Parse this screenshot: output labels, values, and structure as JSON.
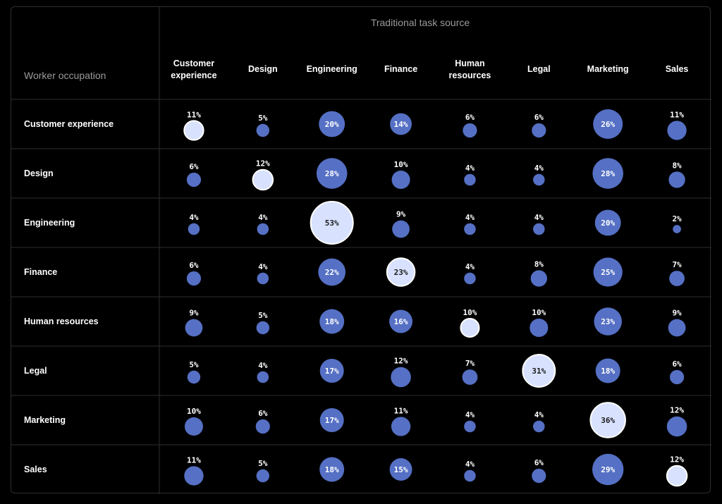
{
  "chart_data": {
    "type": "heatmap",
    "title": "",
    "column_group_label": "Traditional task source",
    "row_group_label": "Worker occupation",
    "columns": [
      "Customer experience",
      "Design",
      "Engineering",
      "Finance",
      "Human resources",
      "Legal",
      "Marketing",
      "Sales"
    ],
    "rows": [
      "Customer experience",
      "Design",
      "Engineering",
      "Finance",
      "Human resources",
      "Legal",
      "Marketing",
      "Sales"
    ],
    "values": [
      [
        11,
        5,
        20,
        14,
        6,
        6,
        26,
        11
      ],
      [
        6,
        12,
        28,
        10,
        4,
        4,
        28,
        8
      ],
      [
        4,
        4,
        53,
        9,
        4,
        4,
        20,
        2
      ],
      [
        6,
        4,
        22,
        23,
        4,
        8,
        25,
        7
      ],
      [
        9,
        5,
        18,
        16,
        10,
        10,
        23,
        9
      ],
      [
        5,
        4,
        17,
        12,
        7,
        31,
        18,
        6
      ],
      [
        10,
        6,
        17,
        11,
        4,
        4,
        36,
        12
      ],
      [
        11,
        5,
        18,
        15,
        4,
        6,
        29,
        12
      ]
    ],
    "value_suffix": "%",
    "encoding": "bubble area proportional to value; diagonal cells highlighted",
    "colors": {
      "bubble": "#5570c4",
      "diagonal_bubble": "#d8e2ff",
      "diagonal_outline": "#ffffff",
      "text_on_bubble": "#ffffff",
      "text_on_diagonal": "#1a1a1a",
      "grid": "#2e2e2e",
      "background": "#000000"
    }
  }
}
